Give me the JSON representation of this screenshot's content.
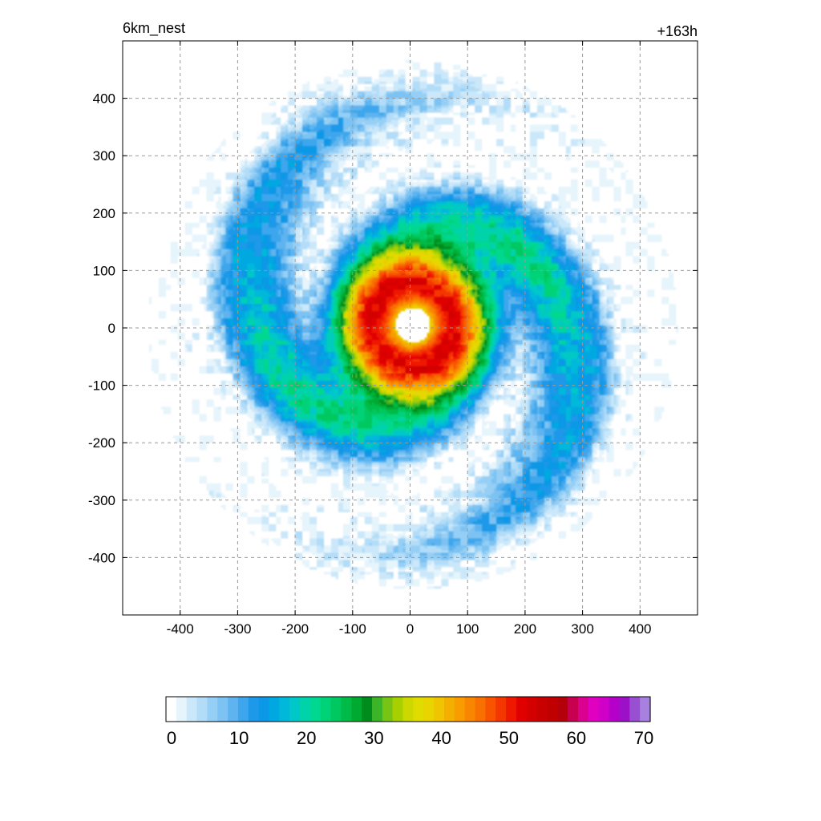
{
  "title_left": "6km_nest",
  "title_right": "+163h",
  "chart_data": {
    "type": "heatmap",
    "description_fields": {
      "x_ticks": [
        -400,
        -300,
        -200,
        -100,
        0,
        100,
        200,
        300,
        400
      ],
      "y_ticks": [
        400,
        300,
        200,
        100,
        0,
        -100,
        -200,
        -300,
        -400
      ]
    },
    "xlim": [
      -500,
      500
    ],
    "ylim": [
      -500,
      500
    ],
    "grid": true,
    "x_tick_labels": [
      "-400",
      "-300",
      "-200",
      "-100",
      "0",
      "100",
      "200",
      "300",
      "400"
    ],
    "y_tick_labels": [
      "400",
      "300",
      "200",
      "100",
      "0",
      "-100",
      "-200",
      "-300",
      "-400"
    ],
    "colorbar": {
      "min": 0,
      "max": 70,
      "tick_values": [
        0,
        10,
        20,
        30,
        40,
        50,
        60,
        70
      ],
      "tick_labels": [
        "0",
        "10",
        "20",
        "30",
        "40",
        "50",
        "60",
        "70"
      ],
      "colors": [
        "#ffffff",
        "#e6f4fc",
        "#cbe8fa",
        "#b2dcf8",
        "#96cff5",
        "#7cc2f2",
        "#5fb4ef",
        "#3da6ec",
        "#1e98e8",
        "#0b98e6",
        "#00a8e2",
        "#00b8da",
        "#00c8c8",
        "#00d2aa",
        "#00d890",
        "#00d278",
        "#00c860",
        "#00bb48",
        "#00aa30",
        "#008c1c",
        "#3cb428",
        "#78c414",
        "#a8d000",
        "#ccd800",
        "#e0dc00",
        "#ead400",
        "#f0c400",
        "#f4b000",
        "#f89c00",
        "#f88600",
        "#f87000",
        "#f85400",
        "#f43600",
        "#ee1800",
        "#e00000",
        "#d40000",
        "#c80000",
        "#c00000",
        "#b40008",
        "#c80050",
        "#dc0090",
        "#e000c0",
        "#d000c8",
        "#b400c8",
        "#9c10c8",
        "#9850d0",
        "#a880e0"
      ]
    },
    "field": {
      "center": [
        5,
        5
      ],
      "eye_radius": 30,
      "max_value": 52,
      "rainband_arms": 2
    }
  }
}
